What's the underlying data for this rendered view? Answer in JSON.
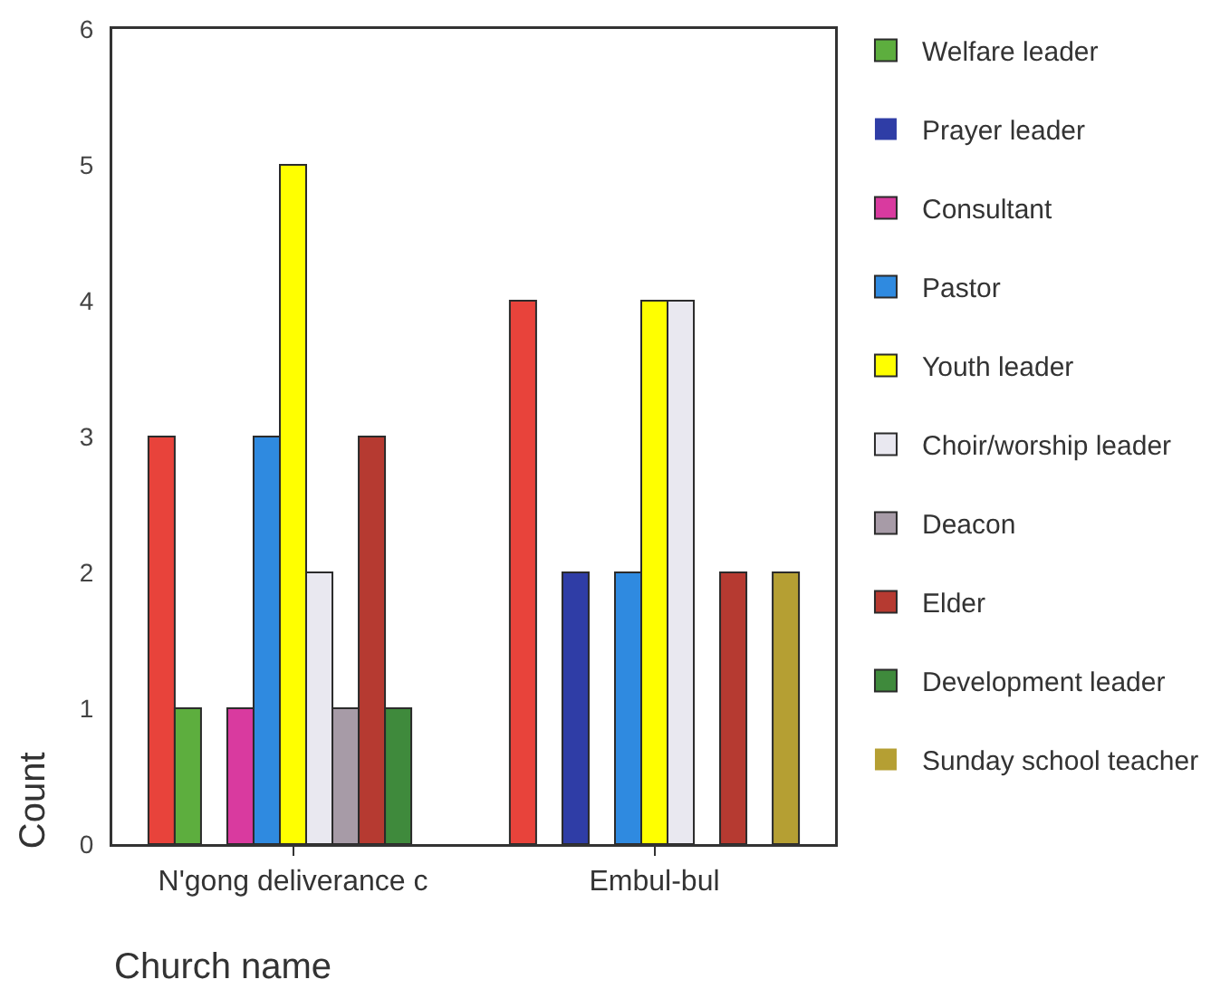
{
  "chart_data": {
    "type": "bar",
    "categories": [
      "N'gong deliverance c",
      "Embul-bul"
    ],
    "xlabel": "Church name",
    "ylabel": "Count",
    "ylim": [
      0,
      6
    ],
    "yticks": [
      0,
      1,
      2,
      3,
      4,
      5,
      6
    ],
    "legend": "top right",
    "series": [
      {
        "color": "#e8433b",
        "values": [
          3,
          4
        ]
      },
      {
        "name": "Welfare leader",
        "color": "#5dae3e",
        "values": [
          1,
          0
        ]
      },
      {
        "name": "Prayer leader",
        "color": "#2f3da6",
        "values": [
          0,
          2
        ]
      },
      {
        "name": "Consultant",
        "color": "#d93a9f",
        "values": [
          1,
          0
        ]
      },
      {
        "name": "Pastor",
        "color": "#2f8ae0",
        "values": [
          3,
          2
        ]
      },
      {
        "name": "Youth leader",
        "color": "#ffff00",
        "values": [
          5,
          4
        ]
      },
      {
        "name": "Choir/worship leader",
        "color": "#e9e8f0",
        "values": [
          2,
          4
        ]
      },
      {
        "name": "Deacon",
        "color": "#a79ba7",
        "values": [
          1,
          0
        ]
      },
      {
        "name": "Elder",
        "color": "#b63a31",
        "values": [
          3,
          2
        ]
      },
      {
        "name": "Development leader",
        "color": "#3f8a3c",
        "values": [
          1,
          0
        ]
      },
      {
        "name": "Sunday school teacher",
        "color": "#b59f33",
        "values": [
          0,
          2
        ]
      }
    ]
  }
}
